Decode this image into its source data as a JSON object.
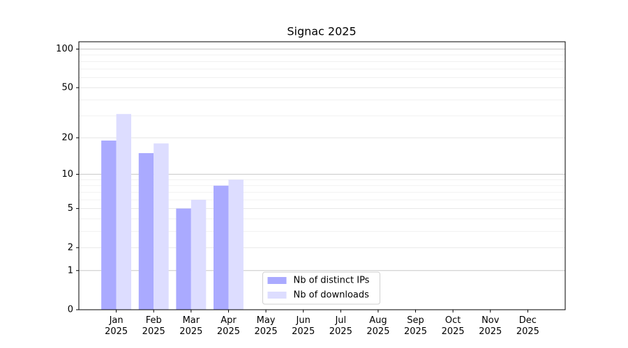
{
  "chart_data": {
    "type": "bar",
    "title": "Signac 2025",
    "categories": [
      "Jan\n2025",
      "Feb\n2025",
      "Mar\n2025",
      "Apr\n2025",
      "May\n2025",
      "Jun\n2025",
      "Jul\n2025",
      "Aug\n2025",
      "Sep\n2025",
      "Oct\n2025",
      "Nov\n2025",
      "Dec\n2025"
    ],
    "series": [
      {
        "name": "Nb of distinct IPs",
        "color": "#aaaaff",
        "values": [
          19,
          15,
          5,
          8,
          null,
          null,
          null,
          null,
          null,
          null,
          null,
          null
        ]
      },
      {
        "name": "Nb of downloads",
        "color": "#ddddff",
        "values": [
          31,
          18,
          6,
          9,
          null,
          null,
          null,
          null,
          null,
          null,
          null,
          null
        ]
      }
    ],
    "yscale": "log1p",
    "ylim": [
      0,
      114
    ],
    "yticks": [
      0,
      1,
      2,
      5,
      10,
      20,
      50,
      100
    ],
    "yminorticks": [
      3,
      4,
      6,
      7,
      8,
      9,
      30,
      40,
      60,
      70,
      80,
      90
    ],
    "grid": true,
    "legend": "lower center"
  }
}
